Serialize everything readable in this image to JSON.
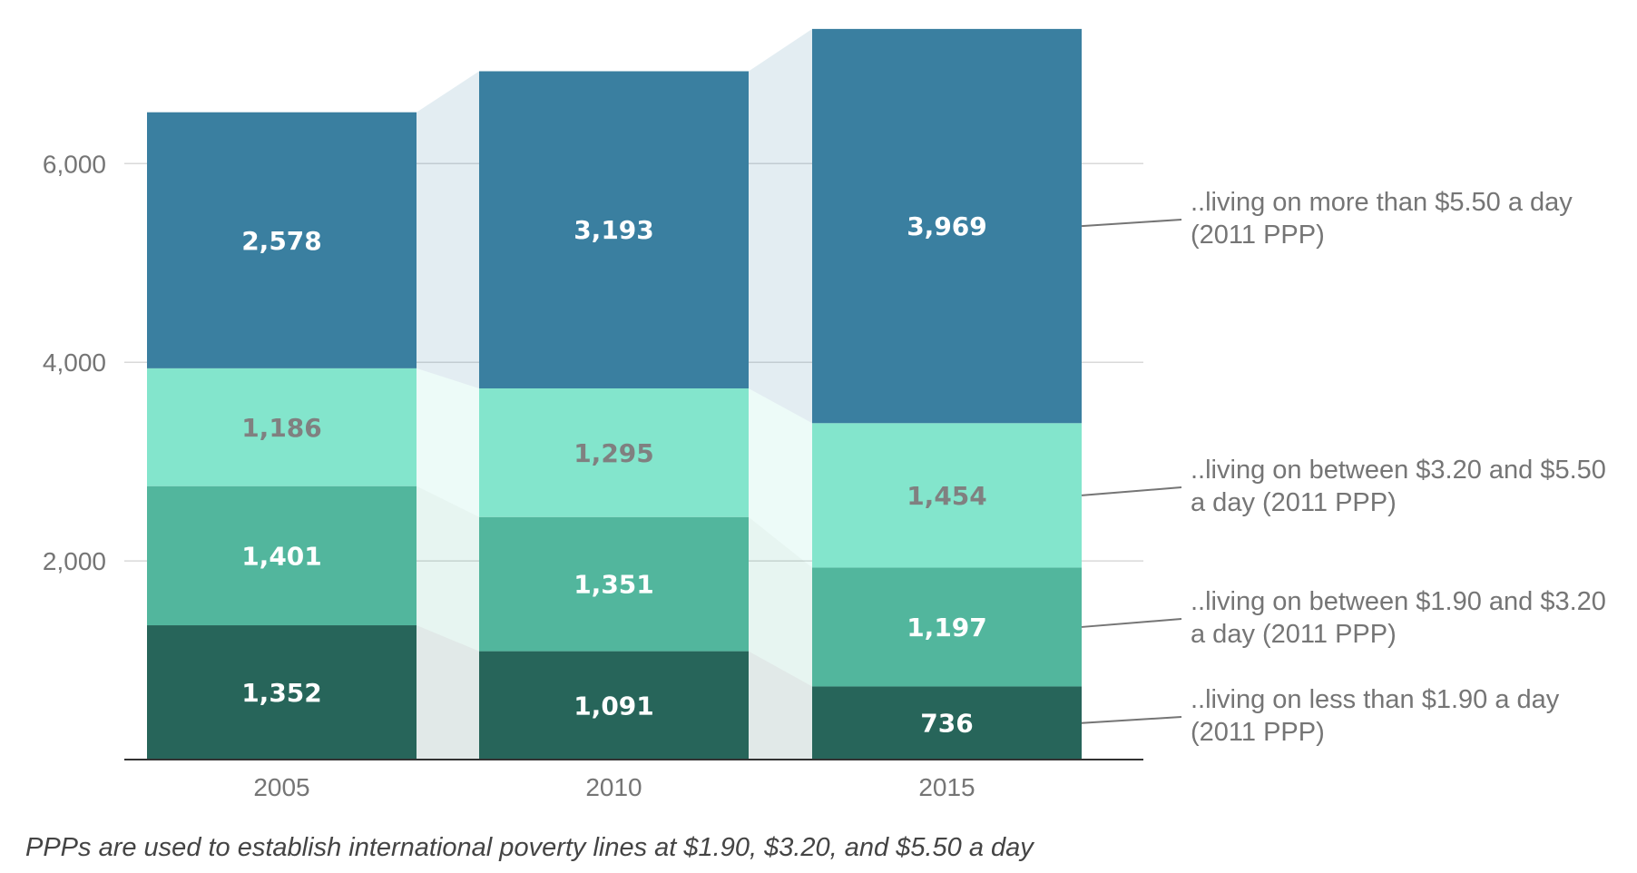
{
  "chart_data": {
    "type": "bar",
    "stacked": true,
    "categories": [
      "2005",
      "2010",
      "2015"
    ],
    "series": [
      {
        "name": "..living on less than $1.90 a day (2011 PPP)",
        "values": [
          1352,
          1091,
          736
        ],
        "color": "#27655A",
        "label_color": "#ffffff"
      },
      {
        "name": "..living on between $1.90 and $3.20 a day (2011 PPP)",
        "values": [
          1401,
          1351,
          1197
        ],
        "color": "#52B69D",
        "label_color": "#ffffff"
      },
      {
        "name": "..living on between $3.20 and $5.50 a day (2011 PPP)",
        "values": [
          1186,
          1295,
          1454
        ],
        "color": "#83E5CC",
        "label_color": "#808080"
      },
      {
        "name": "..living on more than $5.50 a day (2011 PPP)",
        "values": [
          2578,
          3193,
          3969
        ],
        "color": "#3A7FA0",
        "label_color": "#ffffff"
      }
    ],
    "value_labels": [
      [
        "1,352",
        "1,091",
        "736"
      ],
      [
        "1,401",
        "1,351",
        "1,197"
      ],
      [
        "1,186",
        "1,295",
        "1,454"
      ],
      [
        "2,578",
        "3,193",
        "3,969"
      ]
    ],
    "legend_lines": [
      [
        "..living on less than $1.90 a day",
        "(2011 PPP)"
      ],
      [
        "..living on between $1.90 and $3.20",
        "a day (2011 PPP)"
      ],
      [
        "..living on between $3.20 and $5.50",
        "a day (2011 PPP)"
      ],
      [
        "..living on more than $5.50 a day",
        "(2011 PPP)"
      ]
    ],
    "yticks": [
      2000,
      4000,
      6000
    ],
    "ytick_labels": [
      "2,000",
      "4,000",
      "6,000"
    ],
    "ylim": [
      0,
      7500
    ],
    "grid": true,
    "legend_position": "right",
    "footnote": "PPPs are used to establish international poverty lines at $1.90, $3.20, and $5.50 a day"
  }
}
